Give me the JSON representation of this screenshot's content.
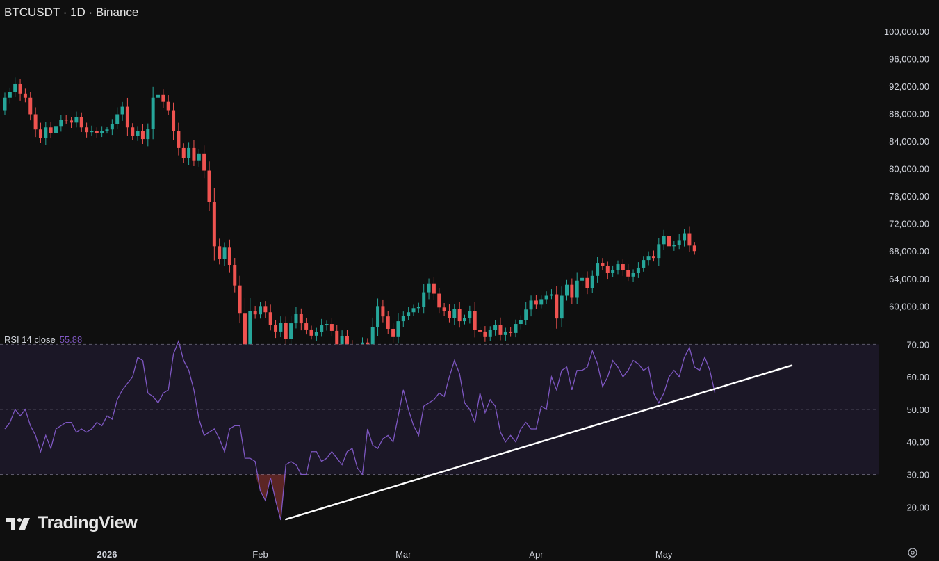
{
  "header": {
    "symbol_label": "BTCUSDT · 1D · Binance"
  },
  "rsi_legend": {
    "label": "RSI 14 close",
    "value": "55.88"
  },
  "branding": {
    "logo_text": "TradingView"
  },
  "colors": {
    "background": "#0f0f0f",
    "up": "#26a69a",
    "down": "#ef5350",
    "rsi_line": "#7e57c2",
    "rsi_band": "#1b1726",
    "trendline": "#ffffff"
  },
  "icons": {
    "settings": "gear-icon",
    "logo": "tradingview-logo-icon"
  },
  "chart_data": [
    {
      "type": "candlestick",
      "title": "BTCUSDT · 1D · Binance",
      "price_axis_labels": [
        "100,000.00",
        "96,000.00",
        "92,000.00",
        "88,000.00",
        "84,000.00",
        "80,000.00",
        "76,000.00",
        "72,000.00",
        "68,000.00",
        "64,000.00",
        "60,000.00"
      ],
      "y_ticks": [
        100000,
        96000,
        92000,
        88000,
        84000,
        80000,
        76000,
        72000,
        68000,
        64000,
        60000
      ],
      "ylim": [
        57000,
        101500
      ],
      "time_axis_labels": [
        "2026",
        "Feb",
        "Mar",
        "Apr",
        "May"
      ],
      "time_axis_candle_index": [
        20,
        50,
        78,
        104,
        129
      ],
      "approx_ohlc_series": [
        {
          "start_price": 88500,
          "changes": [
            1800,
            800,
            1200,
            -1400,
            -600,
            -2400,
            -2200,
            -1200,
            1500,
            -800,
            1000,
            900,
            -100,
            -300,
            800,
            -1500,
            -700,
            200,
            -300,
            300,
            200,
            800,
            1400,
            1100,
            -3000,
            -1200,
            700,
            -1200,
            1500,
            4500,
            500,
            -1100,
            -1200,
            -3000,
            -2500,
            -1500,
            1500,
            -1800,
            1000,
            -2500,
            -4500,
            -6500,
            -1800,
            1600,
            -2500,
            -3000,
            -4000,
            -6500,
            6800,
            -500,
            1200,
            -900,
            -1800,
            -1000,
            1300,
            -2400,
            2300,
            1400,
            -1400,
            -900,
            -900,
            500,
            1000,
            200,
            -1000,
            -2400,
            1600,
            -1200,
            -1000,
            -500,
            1800,
            -500,
            2800,
            3000,
            -1500,
            -1800,
            -1200,
            2300,
            800,
            500,
            600,
            200,
            2100,
            1300,
            -1500,
            -2000,
            -500,
            -1000,
            1300,
            -1800,
            500,
            1000,
            -2800,
            -200,
            -800,
            1000,
            800,
            -1500,
            500,
            -200,
            1300,
            600,
            1500,
            1300,
            -600,
            800,
            500,
            200,
            -3500,
            3300,
            1600,
            -1800,
            2400,
            400,
            -1500,
            1800,
            1800,
            -400,
            -1000,
            400,
            900,
            -900,
            -900,
            500,
            800,
            1100,
            600,
            -300,
            2000,
            1200,
            -1500,
            200,
            700,
            1000,
            -1800,
            -800
          ]
        }
      ]
    },
    {
      "type": "line",
      "title": "RSI 14 close",
      "last_value": 55.88,
      "y_axis_labels": [
        "70.00",
        "60.00",
        "50.00",
        "40.00",
        "30.00",
        "20.00"
      ],
      "y_ticks": [
        70,
        60,
        50,
        40,
        30,
        20
      ],
      "ylim": [
        14.5,
        70.5
      ],
      "band": [
        30,
        70
      ],
      "midline": 50,
      "series": [
        {
          "values": [
            44,
            46,
            50,
            48,
            50,
            45,
            42,
            37,
            42,
            38,
            44,
            45,
            46,
            46,
            43,
            44,
            43,
            44,
            46,
            45,
            48,
            47,
            53,
            56,
            58,
            60,
            66,
            65,
            55,
            54,
            52,
            55,
            56,
            67,
            71,
            65,
            62,
            56,
            47,
            42,
            43,
            44,
            41,
            37,
            44,
            45,
            45,
            35,
            35,
            34,
            25,
            22,
            29,
            22,
            16,
            33,
            34,
            33,
            30,
            30,
            37,
            37,
            34,
            35,
            37,
            35,
            33,
            37,
            38,
            32,
            30,
            44,
            39,
            38,
            41,
            42,
            40,
            48,
            56,
            50,
            45,
            42,
            51,
            52,
            53,
            55,
            54,
            60,
            65,
            61,
            52,
            50,
            46,
            55,
            49,
            53,
            51,
            43,
            40,
            42,
            40,
            44,
            46,
            44,
            44,
            51,
            50,
            60,
            56,
            62,
            63,
            56,
            62,
            62,
            63,
            68,
            64,
            57,
            60,
            65,
            63,
            60,
            62,
            65,
            64,
            62,
            63,
            55,
            52,
            55,
            60,
            62,
            60,
            66,
            69,
            63,
            62,
            66,
            62,
            55
          ]
        }
      ],
      "trendline": {
        "from": {
          "candle_index": 55,
          "value": 16.2
        },
        "to": {
          "candle_index": 154,
          "value": 63.5
        }
      }
    }
  ]
}
